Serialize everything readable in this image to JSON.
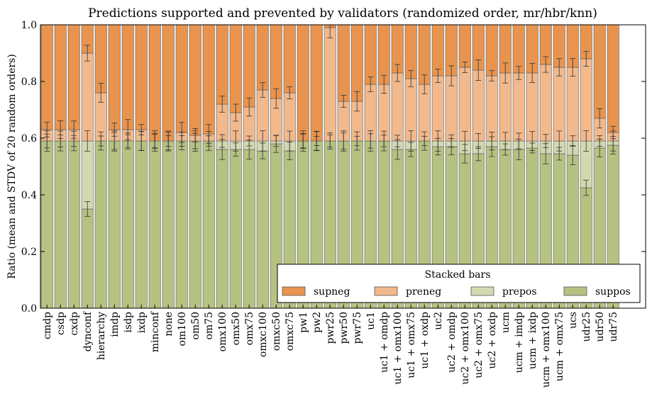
{
  "chart_data": {
    "type": "bar",
    "stacked": true,
    "title": "Predictions supported and prevented by validators (randomized order, mr/hbr/knn)",
    "xlabel": "",
    "ylabel": "Ratio (mean and STDV of 20 random orders)",
    "ylim": [
      0,
      1
    ],
    "yticks": [
      "0.0",
      "0.2",
      "0.4",
      "0.6",
      "0.8",
      "1.0"
    ],
    "grid": false,
    "legend": {
      "title": "Stacked bars",
      "placement": "bottom-right"
    },
    "colors": {
      "supneg": "#e8944f",
      "preneg": "#f2b98c",
      "prepos": "#d2d9b0",
      "suppos": "#b5c282",
      "edge": "#555555",
      "errorbar": "#333333"
    },
    "categories": [
      "cmdp",
      "csdp",
      "cxdp",
      "dynconf",
      "hierarchy",
      "imdp",
      "isdp",
      "ixdp",
      "minconf",
      "none",
      "om100",
      "om50",
      "om75",
      "omx100",
      "omx50",
      "omx75",
      "omxc100",
      "omxc50",
      "omxc75",
      "pw1",
      "pw2",
      "pwr25",
      "pwr50",
      "pwr75",
      "uc1",
      "uc1 + omdp",
      "uc1 + omx100",
      "uc1 + omx75",
      "uc1 + oxdp",
      "uc2",
      "uc2 + omdp",
      "uc2 + omx100",
      "uc2 + omx75",
      "uc2 + oxdp",
      "ucm",
      "ucm + imdp",
      "ucm + ixdp",
      "ucm + omx100",
      "ucm + omx75",
      "ucs",
      "udr25",
      "udr50",
      "udr75"
    ],
    "series": [
      {
        "name": "suppos",
        "values": [
          0.59,
          0.59,
          0.59,
          0.35,
          0.59,
          0.59,
          0.59,
          0.59,
          0.59,
          0.59,
          0.59,
          0.59,
          0.59,
          0.56,
          0.56,
          0.56,
          0.555,
          0.58,
          0.555,
          0.59,
          0.59,
          0.59,
          0.59,
          0.59,
          0.59,
          0.59,
          0.56,
          0.56,
          0.59,
          0.57,
          0.57,
          0.545,
          0.545,
          0.57,
          0.56,
          0.56,
          0.565,
          0.545,
          0.545,
          0.54,
          0.425,
          0.565,
          0.575
        ]
      },
      {
        "name": "prepos",
        "values": [
          0,
          0,
          0,
          0.24,
          0,
          0,
          0,
          0,
          0,
          0,
          0,
          0,
          0,
          0.03,
          0.03,
          0.03,
          0.035,
          0.01,
          0.035,
          0,
          0,
          0,
          0,
          0,
          0,
          0,
          0.03,
          0.03,
          0,
          0.02,
          0.02,
          0.045,
          0.045,
          0.02,
          0.03,
          0.03,
          0.025,
          0.045,
          0.045,
          0.05,
          0.165,
          0.025,
          0.015
        ]
      },
      {
        "name": "preneg",
        "values": [
          0.04,
          0.04,
          0.04,
          0.31,
          0.17,
          0.04,
          0.04,
          0.04,
          0,
          0,
          0.03,
          0.02,
          0.025,
          0.13,
          0.1,
          0.12,
          0.18,
          0.15,
          0.17,
          0,
          0,
          0.4,
          0.14,
          0.14,
          0.2,
          0.2,
          0.24,
          0.22,
          0.2,
          0.23,
          0.23,
          0.26,
          0.25,
          0.23,
          0.24,
          0.24,
          0.24,
          0.27,
          0.26,
          0.26,
          0.29,
          0.08,
          0.03
        ]
      },
      {
        "name": "supneg",
        "values": [
          0.37,
          0.37,
          0.37,
          0.1,
          0.24,
          0.37,
          0.37,
          0.37,
          0.41,
          0.41,
          0.38,
          0.39,
          0.385,
          0.28,
          0.31,
          0.29,
          0.23,
          0.26,
          0.24,
          0.41,
          0.41,
          0.01,
          0.27,
          0.27,
          0.21,
          0.21,
          0.17,
          0.19,
          0.21,
          0.18,
          0.18,
          0.15,
          0.16,
          0.18,
          0.17,
          0.17,
          0.17,
          0.14,
          0.15,
          0.15,
          0.12,
          0.33,
          0.38
        ]
      }
    ]
  }
}
